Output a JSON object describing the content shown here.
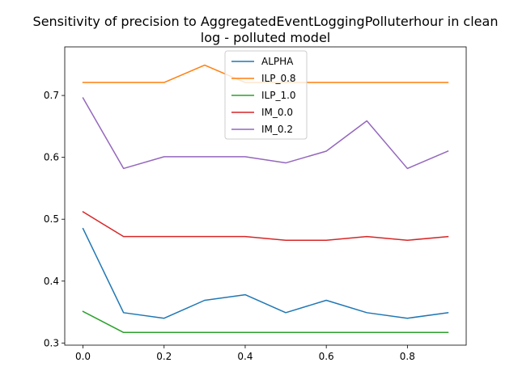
{
  "chart_data": {
    "type": "line",
    "title_lines": [
      "Sensitivity of precision to AggregatedEventLoggingPolluterhour in clean",
      "log - polluted model"
    ],
    "xlabel": "",
    "ylabel": "",
    "x": [
      0.0,
      0.1,
      0.2,
      0.3,
      0.4,
      0.5,
      0.6,
      0.7,
      0.8,
      0.9
    ],
    "xlim": [
      -0.045,
      0.945
    ],
    "ylim": [
      0.2965,
      0.7785
    ],
    "xticks": [
      0.0,
      0.2,
      0.4,
      0.6,
      0.8
    ],
    "xtick_labels": [
      "0.0",
      "0.2",
      "0.4",
      "0.6",
      "0.8"
    ],
    "yticks": [
      0.3,
      0.4,
      0.5,
      0.6,
      0.7
    ],
    "ytick_labels": [
      "0.3",
      "0.4",
      "0.5",
      "0.6",
      "0.7"
    ],
    "grid": false,
    "legend_position": "upper-center",
    "series": [
      {
        "name": "ALPHA",
        "color": "#1f77b4",
        "values": [
          0.485,
          0.349,
          0.34,
          0.369,
          0.378,
          0.349,
          0.369,
          0.349,
          0.34,
          0.349
        ]
      },
      {
        "name": "ILP_0.8",
        "color": "#ff7f0e",
        "values": [
          0.721,
          0.721,
          0.721,
          0.749,
          0.721,
          0.721,
          0.721,
          0.721,
          0.721,
          0.721
        ]
      },
      {
        "name": "ILP_1.0",
        "color": "#2ca02c",
        "values": [
          0.351,
          0.317,
          0.317,
          0.317,
          0.317,
          0.317,
          0.317,
          0.317,
          0.317,
          0.317
        ]
      },
      {
        "name": "IM_0.0",
        "color": "#d62728",
        "values": [
          0.512,
          0.472,
          0.472,
          0.472,
          0.472,
          0.466,
          0.466,
          0.472,
          0.466,
          0.472
        ]
      },
      {
        "name": "IM_0.2",
        "color": "#9467bd",
        "values": [
          0.696,
          0.582,
          0.601,
          0.601,
          0.601,
          0.591,
          0.61,
          0.659,
          0.582,
          0.61
        ]
      }
    ]
  }
}
